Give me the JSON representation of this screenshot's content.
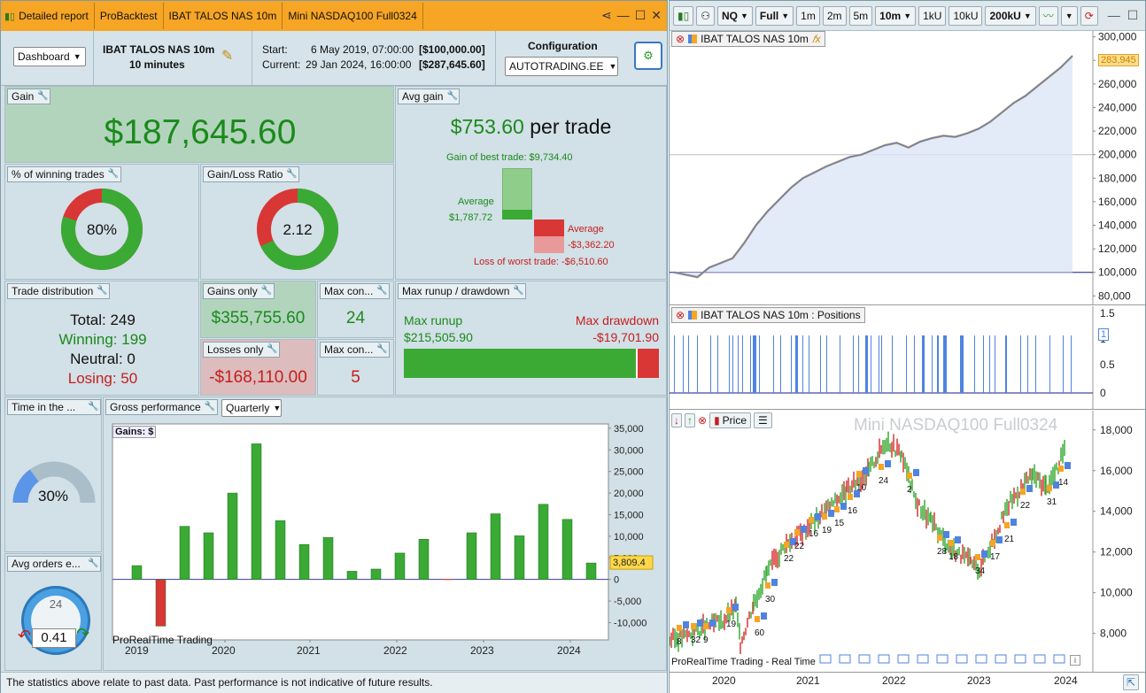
{
  "tabs": [
    "Detailed report",
    "ProBacktest",
    "IBAT TALOS NAS 10m",
    "Mini NASDAQ100 Full0324"
  ],
  "header": {
    "view_select": "Dashboard",
    "system_name": "IBAT TALOS NAS 10m",
    "timeframe": "10 minutes",
    "start_label": "Start:",
    "start_value": "6 May 2019, 07:00:00",
    "start_capital": "[$100,000.00]",
    "current_label": "Current:",
    "current_value": "29 Jan 2024, 16:00:00",
    "current_capital": "[$287,645.60]",
    "config_label": "Configuration",
    "config_select": "AUTOTRADING.EE"
  },
  "gain": {
    "title": "Gain",
    "value": "$187,645.60"
  },
  "avg_gain": {
    "title": "Avg gain",
    "value": "$753.60",
    "unit": "per trade",
    "best": "Gain of best trade: $9,734.40",
    "avg_label_pos": "Average",
    "avg_pos": "$1,787.72",
    "avg_label_neg": "Average",
    "avg_neg": "-$3,362.20",
    "worst": "Loss of worst trade: -$6,510.60"
  },
  "winning": {
    "title": "% of winning trades",
    "value": "80%",
    "pct": 0.8
  },
  "gl_ratio": {
    "title": "Gain/Loss Ratio",
    "value": "2.12",
    "frac": 0.68
  },
  "trade_dist": {
    "title": "Trade distribution",
    "total": "Total: 249",
    "winning": "Winning: 199",
    "neutral": "Neutral: 0",
    "losing": "Losing: 50"
  },
  "gains_only": {
    "title": "Gains only",
    "value": "$355,755.60"
  },
  "losses_only": {
    "title": "Losses only",
    "value": "-$168,110.00"
  },
  "max_cons_win": {
    "title": "Max con...",
    "value": "24"
  },
  "max_cons_loss": {
    "title": "Max con...",
    "value": "5"
  },
  "runup": {
    "title": "Max runup / drawdown",
    "runup_label": "Max runup",
    "runup_value": "$215,505.90",
    "dd_label": "Max drawdown",
    "dd_value": "-$19,701.90",
    "runup_frac": 0.916
  },
  "time_in": {
    "title": "Time in the ...",
    "value": "30%",
    "frac": 0.3
  },
  "avg_orders": {
    "title": "Avg orders e...",
    "value": "0.41",
    "clock": "24"
  },
  "gross": {
    "title": "Gross performance",
    "period": "Quarterly",
    "chart_label": "Gains: $",
    "watermark": "ProRealTime Trading",
    "last_value": "3,809.4"
  },
  "footer": "The statistics above relate to past data. Past performance is not indicative of future results.",
  "right": {
    "symbol": "NQ",
    "range": "Full",
    "tf_buttons": [
      "1m",
      "2m",
      "5m"
    ],
    "tf_sel": "10m",
    "units": [
      "1kU",
      "10kU"
    ],
    "units_sel": "200kU",
    "equity_title": "IBAT TALOS NAS 10m",
    "equity_last": "283,945",
    "equity_ticks": [
      "300,000",
      "280,000",
      "260,000",
      "240,000",
      "220,000",
      "200,000",
      "180,000",
      "160,000",
      "140,000",
      "120,000",
      "100,000",
      "80,000"
    ],
    "pos_title": "IBAT TALOS NAS 10m : Positions",
    "pos_ticks": [
      "1.5",
      "1",
      "0.5",
      "0"
    ],
    "pos_badge": "1",
    "price_title": "Price",
    "price_watermark": "Mini NASDAQ100 Full0324",
    "price_ticks": [
      "18,000",
      "16,000",
      "14,000",
      "12,000",
      "10,000",
      "8,000"
    ],
    "price_footer": "ProRealTime Trading - Real Time",
    "years": [
      "2020",
      "2021",
      "2022",
      "2023",
      "2024"
    ],
    "trade_labels": [
      "8",
      "32",
      "9",
      "19",
      "60",
      "30",
      "22",
      "22",
      "16",
      "19",
      "15",
      "16",
      "10",
      "24",
      "2",
      "28",
      "18",
      "34",
      "17",
      "21",
      "22",
      "31",
      "14"
    ]
  },
  "chart_data": [
    {
      "type": "bar",
      "title": "Gains: $",
      "x": [
        "2019 Q2",
        "2019 Q3",
        "2019 Q4",
        "2020 Q1",
        "2020 Q2",
        "2020 Q3",
        "2020 Q4",
        "2021 Q1",
        "2021 Q2",
        "2021 Q3",
        "2021 Q4",
        "2022 Q1",
        "2022 Q2",
        "2022 Q3",
        "2022 Q4",
        "2023 Q1",
        "2023 Q2",
        "2023 Q3",
        "2023 Q4",
        "2024 Q1"
      ],
      "values": [
        3200,
        -10800,
        12300,
        10800,
        20000,
        31400,
        13600,
        8100,
        9700,
        1900,
        2400,
        6100,
        9300,
        0,
        10800,
        15200,
        10100,
        17400,
        13900,
        3809.4
      ],
      "ylim": [
        -14000,
        36000
      ],
      "yticks": [
        35000,
        30000,
        25000,
        20000,
        15000,
        10000,
        5000,
        0,
        -5000,
        -10000
      ],
      "xticks": [
        "2019",
        "2020",
        "2021",
        "2022",
        "2023",
        "2024"
      ],
      "colors": {
        "pos": "#3aaa35",
        "neg": "#d93636"
      }
    },
    {
      "type": "line",
      "title": "IBAT TALOS NAS 10m",
      "x_range": [
        "2019-05",
        "2024-01"
      ],
      "y": [
        100000,
        98000,
        96000,
        104000,
        108000,
        112000,
        125000,
        140000,
        152000,
        162000,
        172000,
        180000,
        185000,
        190000,
        194000,
        198000,
        200000,
        204000,
        208000,
        210000,
        206000,
        211000,
        214000,
        216000,
        215000,
        218000,
        222000,
        228000,
        236000,
        244000,
        250000,
        258000,
        266000,
        274000,
        283945
      ],
      "ylim": [
        75000,
        305000
      ],
      "color": "#4f83e0"
    }
  ]
}
